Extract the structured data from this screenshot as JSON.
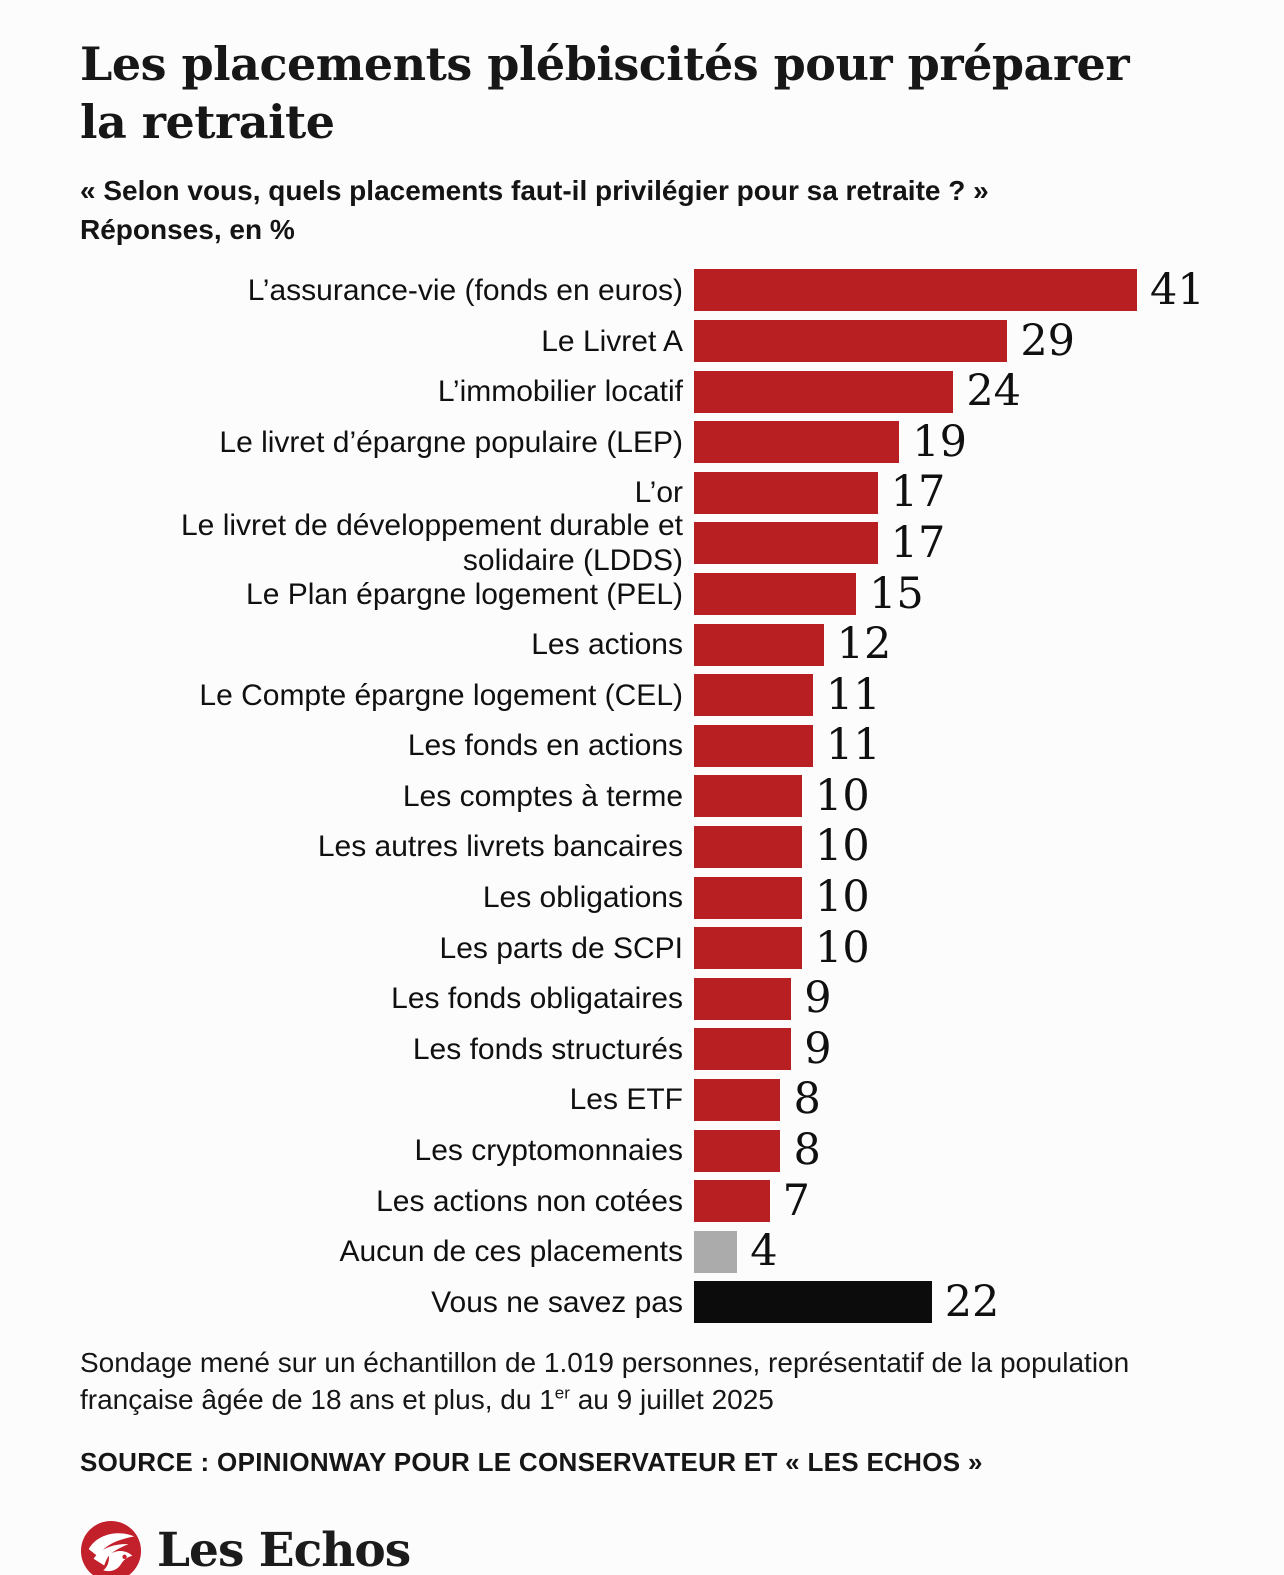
{
  "header": {
    "title": "Les placements plébiscités pour préparer la retraite",
    "subtitle_question": "« Selon vous, quels placements faut-il privilégier pour sa retraite ? »",
    "subtitle_unit": "Réponses, en %"
  },
  "chart_data": {
    "type": "bar",
    "orientation": "horizontal",
    "unit": "%",
    "xlim": [
      0,
      41
    ],
    "grid": false,
    "legend": "none",
    "categories": [
      "L’assurance-vie (fonds en euros)",
      "Le Livret A",
      "L’immobilier locatif",
      "Le livret d’épargne populaire (LEP)",
      "L’or",
      "Le livret de développement durable et solidaire (LDDS)",
      "Le Plan épargne logement (PEL)",
      "Les actions",
      "Le Compte épargne logement (CEL)",
      "Les fonds en actions",
      "Les comptes à terme",
      "Les autres livrets bancaires",
      "Les obligations",
      "Les parts de SCPI",
      "Les fonds obligataires",
      "Les fonds structurés",
      "Les ETF",
      "Les cryptomonnaies",
      "Les actions non cotées",
      "Aucun de ces placements",
      "Vous ne savez pas"
    ],
    "values": [
      41,
      29,
      24,
      19,
      17,
      17,
      15,
      12,
      11,
      11,
      10,
      10,
      10,
      10,
      9,
      9,
      8,
      8,
      7,
      4,
      22
    ],
    "colors": [
      "#b71f23",
      "#b71f23",
      "#b71f23",
      "#b71f23",
      "#b71f23",
      "#b71f23",
      "#b71f23",
      "#b71f23",
      "#b71f23",
      "#b71f23",
      "#b71f23",
      "#b71f23",
      "#b71f23",
      "#b71f23",
      "#b71f23",
      "#b71f23",
      "#b71f23",
      "#b71f23",
      "#b71f23",
      "#ababab",
      "#0c0c0c"
    ],
    "accent_color": "#b71f23",
    "neutral_color": "#ababab",
    "unknown_color": "#0c0c0c"
  },
  "footer": {
    "note_part1": "Sondage mené sur un échantillon de 1.019 personnes, représentatif de la population française âgée de 18 ans et plus, du 1",
    "note_sup": "er",
    "note_part2": " au 9 juillet 2025",
    "source": "SOURCE : OPINIONWAY POUR LE CONSERVATEUR ET « LES ECHOS »"
  },
  "brand": {
    "name": "Les Echos",
    "logo_color": "#c2202b"
  }
}
